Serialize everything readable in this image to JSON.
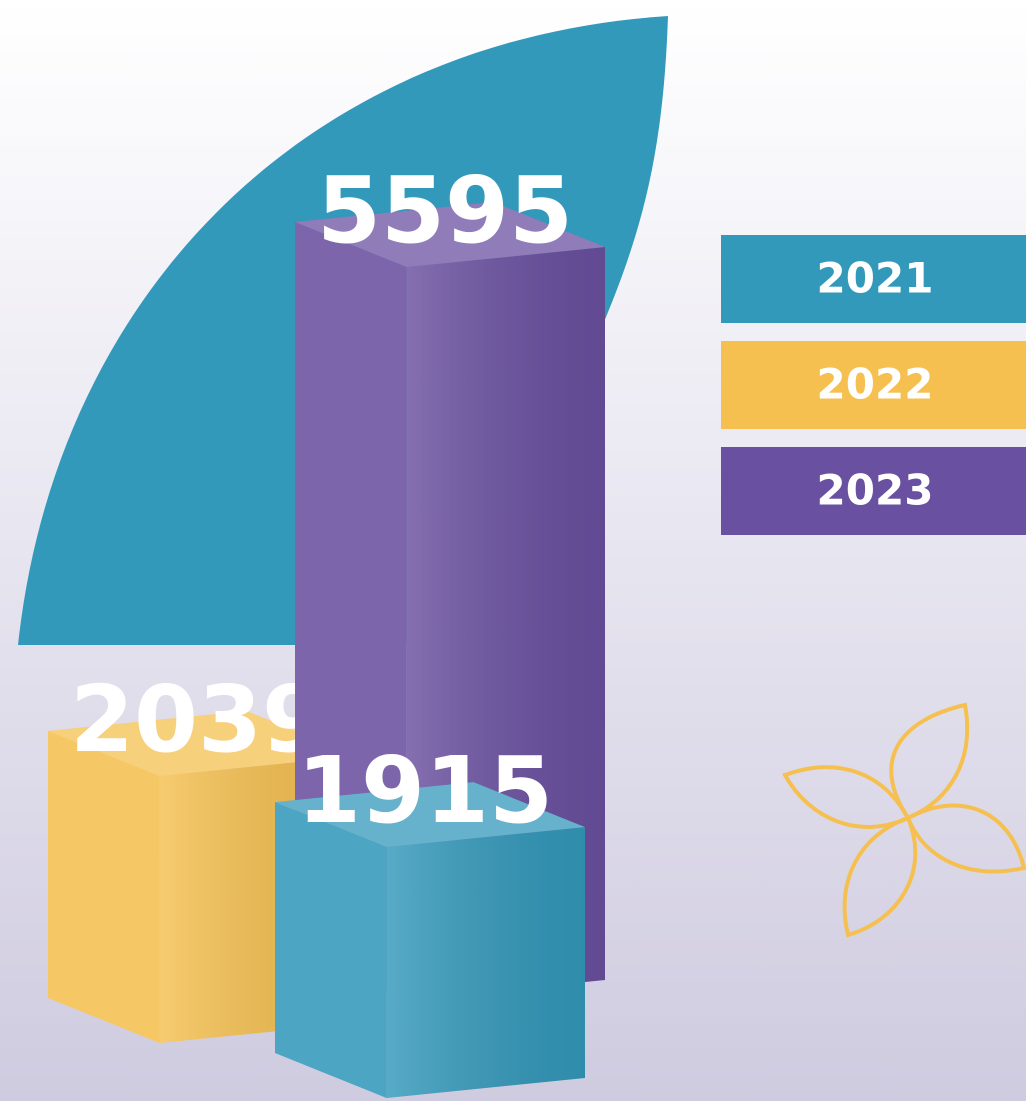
{
  "chart_data": {
    "type": "bar",
    "categories": [
      "2021",
      "2022",
      "2023"
    ],
    "values": [
      1915,
      2039,
      5595
    ],
    "colors": [
      "#3399bb",
      "#f5c050",
      "#6a50a0"
    ]
  }
}
